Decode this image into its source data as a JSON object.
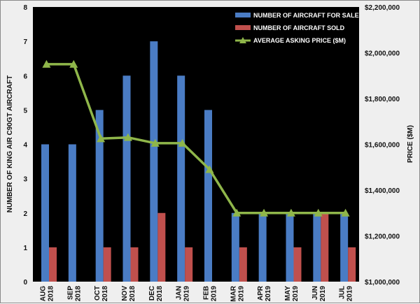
{
  "chart_data": {
    "type": "bar",
    "categories": [
      [
        "AUG",
        "2018"
      ],
      [
        "SEP",
        "2018"
      ],
      [
        "OCT",
        "2018"
      ],
      [
        "NOV",
        "2018"
      ],
      [
        "DEC",
        "2018"
      ],
      [
        "JAN",
        "2019"
      ],
      [
        "FEB",
        "2019"
      ],
      [
        "MAR",
        "2019"
      ],
      [
        "APR",
        "2019"
      ],
      [
        "MAY",
        "2019"
      ],
      [
        "JUN",
        "2019"
      ],
      [
        "JUL",
        "2019"
      ]
    ],
    "series": [
      {
        "name": "NUMBER OF AIRCRAFT FOR SALE",
        "kind": "bar",
        "axis": "left",
        "color": "#4a7cc4",
        "values": [
          4,
          4,
          5,
          6,
          7,
          6,
          5,
          2,
          2,
          2,
          2,
          2
        ]
      },
      {
        "name": "NUMBER OF AIRCRAFT SOLD",
        "kind": "bar",
        "axis": "left",
        "color": "#c0504d",
        "values": [
          1,
          0,
          1,
          1,
          2,
          1,
          0,
          1,
          0,
          1,
          2,
          1
        ]
      },
      {
        "name": "AVERAGE ASKING PRICE ($M)",
        "kind": "line",
        "axis": "right",
        "color": "#8fb64a",
        "values": [
          1950000,
          1950000,
          1625000,
          1630000,
          1605000,
          1605000,
          1490000,
          1300000,
          1300000,
          1300000,
          1300000,
          1300000
        ]
      }
    ],
    "ylabel": "NUMBER OF KING AIR C90GT AIRCRAFT",
    "y2label": "PRICE ($M)",
    "ylim": [
      0,
      8
    ],
    "y2lim": [
      1000000,
      2200000
    ],
    "yticks": [
      "0",
      "1",
      "2",
      "3",
      "4",
      "5",
      "6",
      "7",
      "8"
    ],
    "y2ticks": [
      "$1,000,000",
      "$1,200,000",
      "$1,400,000",
      "$1,600,000",
      "$1,800,000",
      "$2,000,000",
      "$2,200,000"
    ],
    "grid": false,
    "legend": "top-right",
    "plot_background": "#000000"
  }
}
